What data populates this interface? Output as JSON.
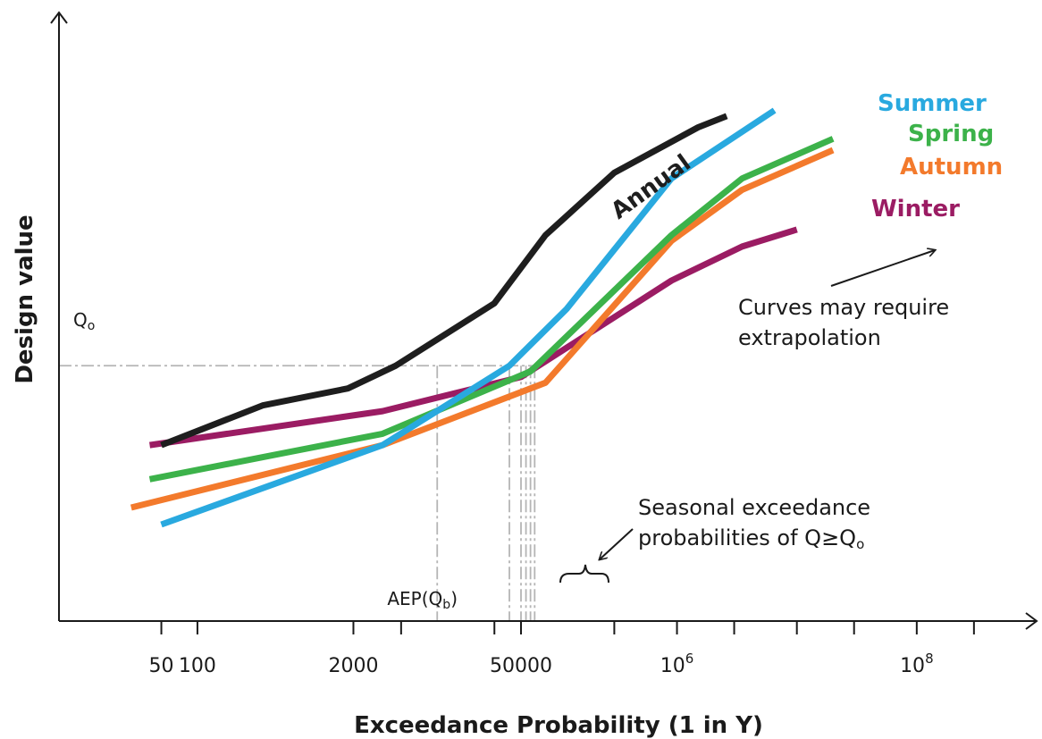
{
  "chart_data": {
    "type": "line",
    "title": "",
    "xlabel": "Exceedance Probability (1 in Y)",
    "ylabel": "Design value",
    "x_scale": "log",
    "xlim": [
      7,
      1000000000
    ],
    "ylim": [
      0,
      1
    ],
    "x_tick_labels": [
      {
        "value": 50,
        "label": "50"
      },
      {
        "value": 100,
        "label": "100"
      },
      {
        "value": 2000,
        "label": "2000"
      },
      {
        "value": 50000,
        "label": "50000"
      },
      {
        "value": 1000000,
        "label": "10",
        "sup": "6"
      },
      {
        "value": 100000000,
        "label": "10",
        "sup": "8"
      }
    ],
    "x_minor_ticks": [
      5000,
      30000,
      300000,
      3000000,
      10000000,
      30000000,
      300000000
    ],
    "grid": false,
    "legend": "inline labels at the right end of each curve",
    "series": [
      {
        "name": "Annual",
        "color": "#1e1e1e",
        "points": [
          [
            50,
            0.31
          ],
          [
            350,
            0.38
          ],
          [
            1800,
            0.41
          ],
          [
            4500,
            0.45
          ],
          [
            30000,
            0.56
          ],
          [
            80000,
            0.68
          ],
          [
            300000,
            0.79
          ],
          [
            1500000,
            0.87
          ],
          [
            2600000,
            0.89
          ]
        ]
      },
      {
        "name": "Summer",
        "color": "#29a9df",
        "points": [
          [
            50,
            0.17
          ],
          [
            3500,
            0.31
          ],
          [
            40000,
            0.45
          ],
          [
            120000,
            0.55
          ],
          [
            900000,
            0.78
          ],
          [
            6500000,
            0.9
          ]
        ]
      },
      {
        "name": "Spring",
        "color": "#3cb24a",
        "points": [
          [
            40,
            0.25
          ],
          [
            3500,
            0.33
          ],
          [
            60000,
            0.44
          ],
          [
            900000,
            0.68
          ],
          [
            3500000,
            0.78
          ],
          [
            20000000,
            0.85
          ]
        ]
      },
      {
        "name": "Autumn",
        "color": "#f37a2c",
        "points": [
          [
            28,
            0.2
          ],
          [
            3500,
            0.31
          ],
          [
            80000,
            0.42
          ],
          [
            900000,
            0.67
          ],
          [
            3500000,
            0.76
          ],
          [
            20000000,
            0.83
          ]
        ]
      },
      {
        "name": "Winter",
        "color": "#9b1c63",
        "points": [
          [
            40,
            0.31
          ],
          [
            3500,
            0.37
          ],
          [
            50000,
            0.43
          ],
          [
            900000,
            0.6
          ],
          [
            3500000,
            0.66
          ],
          [
            10000000,
            0.69
          ]
        ]
      }
    ],
    "reference": {
      "q_label": "Q",
      "q_sub": "o",
      "q_level": 0.45,
      "aep_label_prefix": "AEP(Q",
      "aep_label_sub": "b",
      "aep_label_suffix": ")",
      "aep_x": 10000,
      "seasonal_x": [
        40000,
        50000,
        55000,
        60000,
        65000
      ]
    },
    "annotations": {
      "extrapolation_line1": "Curves may require",
      "extrapolation_line2": "extrapolation",
      "seasonal_line1": "Seasonal exceedance",
      "seasonal_line2_prefix": "probabilities of Q≥Q",
      "seasonal_line2_sub": "o"
    }
  }
}
